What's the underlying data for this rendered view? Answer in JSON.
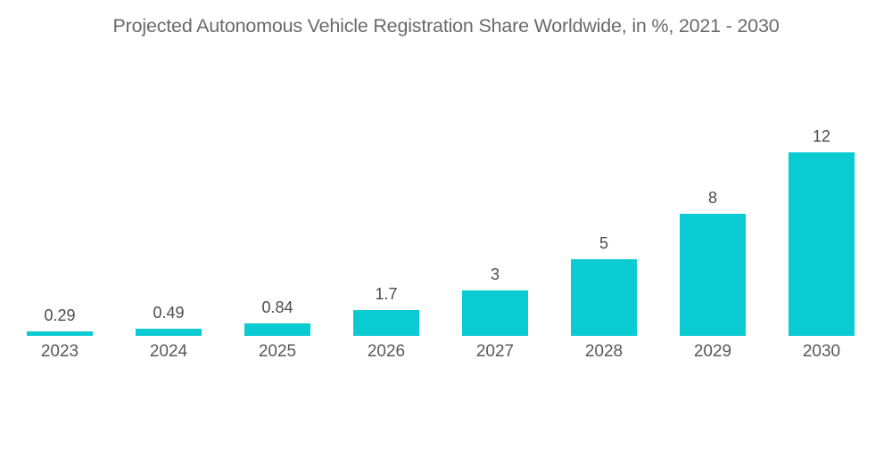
{
  "chart_data": {
    "type": "bar",
    "title": "Projected Autonomous Vehicle Registration Share Worldwide, in %, 2021 - 2030",
    "categories": [
      "2023",
      "2024",
      "2025",
      "2026",
      "2027",
      "2028",
      "2029",
      "2030"
    ],
    "values": [
      0.29,
      0.49,
      0.84,
      1.7,
      3,
      5,
      8,
      12
    ],
    "value_labels": [
      "0.29",
      "0.49",
      "0.84",
      "1.7",
      "3",
      "5",
      "8",
      "12"
    ],
    "series_name": "Autonomous vehicle registration share",
    "unit": "%",
    "xlabel": "",
    "ylabel": "",
    "ylim": [
      0,
      12
    ],
    "grid": false,
    "legend_position": "none",
    "axis_lines": "none",
    "bar_pixels_per_unit": 17.1667,
    "colors": {
      "bar": "#0acbd2",
      "title": "#6a6a6a",
      "value_label": "#4c4c4c",
      "year_label": "#58585a",
      "background": "#ffffff"
    }
  }
}
